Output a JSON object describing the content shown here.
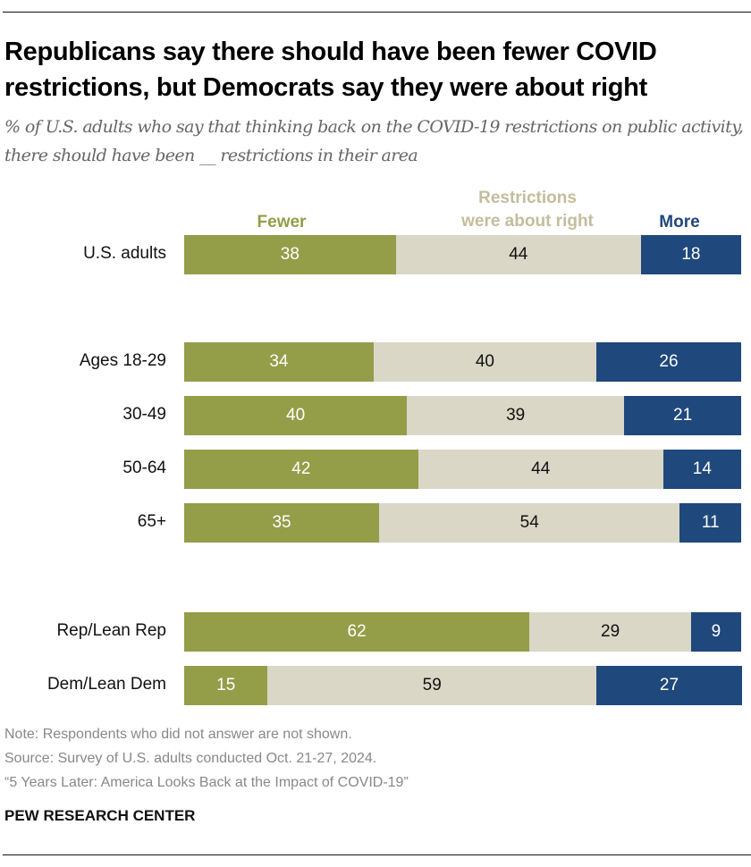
{
  "title": "Republicans say there should have been fewer COVID restrictions, but Democrats say they were about right",
  "subtitle": "% of U.S. adults who say that thinking back on the COVID-19 restrictions on public activity, there should have been __ restrictions in their area",
  "colors": {
    "fewer": "#949d48",
    "about_right": "#dad7c7",
    "more": "#1f487c",
    "about_right_label": "#c4bd9c"
  },
  "chart_data": {
    "type": "bar",
    "orientation": "horizontal",
    "stacked": true,
    "categories": [
      "U.S. adults",
      "Ages 18-29",
      "30-49",
      "50-64",
      "65+",
      "Rep/Lean Rep",
      "Dem/Lean Dem"
    ],
    "legend": [
      "Fewer",
      "Restrictions were about right",
      "More"
    ],
    "series": [
      {
        "name": "Fewer",
        "values": [
          38,
          34,
          40,
          42,
          35,
          62,
          15
        ]
      },
      {
        "name": "Restrictions were about right",
        "values": [
          44,
          40,
          39,
          44,
          54,
          29,
          59
        ]
      },
      {
        "name": "More",
        "values": [
          18,
          26,
          21,
          14,
          11,
          9,
          27
        ]
      }
    ],
    "xlim": [
      0,
      100
    ],
    "grid": false,
    "legend_placement": "top"
  },
  "legend": {
    "fewer": "Fewer",
    "about_right_line1": "Restrictions",
    "about_right_line2": "were about right",
    "more": "More"
  },
  "footer": {
    "note": "Note: Respondents who did not answer are not shown.",
    "source": "Source: Survey of U.S. adults conducted Oct. 21-27, 2024.",
    "report": "“5 Years Later: America Looks Back at the Impact of COVID-19”",
    "brand": "PEW RESEARCH CENTER"
  }
}
